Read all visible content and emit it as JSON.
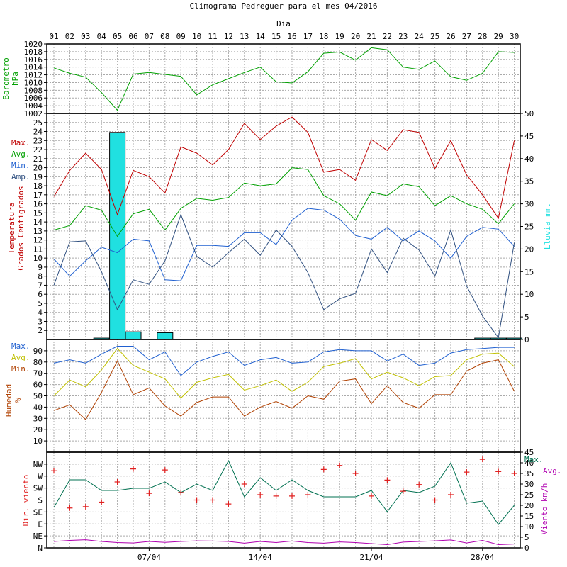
{
  "title": "Climograma Pedreguer para el mes 04/2016",
  "colors": {
    "pressure": "#00a000",
    "tmax": "#c00000",
    "tavg": "#00a000",
    "tmin": "#2060d0",
    "tamp": "#305080",
    "rain": "#20e0e0",
    "hmax": "#2060d0",
    "havg": "#c0c000",
    "hmin": "#b04000",
    "winddir": "#e02020",
    "windmax": "#007050",
    "windavg": "#b000b0",
    "grid": "#aaaaaa",
    "axis": "#000000"
  },
  "chart_data": [
    {
      "type": "line",
      "name": "pressure",
      "xlabel": "Dia",
      "categories": [
        "01",
        "02",
        "03",
        "04",
        "05",
        "06",
        "07",
        "08",
        "09",
        "10",
        "11",
        "12",
        "13",
        "14",
        "15",
        "16",
        "17",
        "18",
        "19",
        "20",
        "21",
        "22",
        "23",
        "24",
        "25",
        "26",
        "27",
        "28",
        "29",
        "30"
      ],
      "ylabel": "Barometro hPa",
      "ylabel_lines": [
        "Barometro",
        "hPa"
      ],
      "ylim": [
        1002,
        1020
      ],
      "yticks": [
        1002,
        1004,
        1006,
        1008,
        1010,
        1012,
        1014,
        1016,
        1018,
        1020
      ],
      "ytick_labels": [
        "1002",
        "1004",
        "1006",
        "1008",
        "1010",
        "1012",
        "1014",
        "1016",
        "1018",
        "1020"
      ],
      "series": [
        {
          "name": "",
          "values": [
            1013.8,
            1012.4,
            1011.4,
            1007.4,
            1002.8,
            1012.2,
            1012.6,
            1012.1,
            1011.6,
            1006.8,
            1009.4,
            1011.0,
            1012.6,
            1014.0,
            1010.2,
            1009.9,
            1012.8,
            1017.6,
            1017.9,
            1015.8,
            1019.0,
            1018.5,
            1014.0,
            1013.4,
            1015.6,
            1011.5,
            1010.6,
            1012.4,
            1018.0,
            1017.8
          ]
        }
      ]
    },
    {
      "type": "line",
      "name": "temperature",
      "ylabel": "Temperatura Grados Centigrados",
      "ylabel_lines": [
        "Temperatura",
        "Grados Centigrados"
      ],
      "ylim": [
        1,
        26
      ],
      "yticks": [
        2,
        3,
        4,
        5,
        6,
        7,
        8,
        9,
        10,
        11,
        12,
        13,
        14,
        15,
        16,
        17,
        18,
        19,
        20,
        21,
        22,
        23,
        24,
        25
      ],
      "ytick_labels": [
        "2",
        "3",
        "4",
        "5",
        "6",
        "7",
        "8",
        "9",
        "10",
        "11",
        "12",
        "13",
        "14",
        "15",
        "16",
        "17",
        "18",
        "19",
        "20",
        "21",
        "22",
        "23",
        "24",
        "25"
      ],
      "y2label": "Lluvia mm.",
      "y2lim": [
        0,
        50
      ],
      "y2ticks": [
        0,
        5,
        10,
        15,
        20,
        25,
        30,
        35,
        40,
        45,
        50
      ],
      "y2tick_labels": [
        "0",
        "5",
        "10",
        "15",
        "20",
        "25",
        "30",
        "35",
        "40",
        "45",
        "50"
      ],
      "legend": [
        "Max.",
        "Avg.",
        "Min.",
        "Amp."
      ],
      "series": [
        {
          "name": "Max.",
          "values": [
            16.8,
            19.7,
            21.6,
            19.8,
            14.8,
            19.7,
            19.0,
            17.2,
            22.3,
            21.6,
            20.3,
            22.0,
            24.9,
            23.1,
            24.6,
            25.6,
            23.9,
            19.5,
            19.8,
            18.6,
            23.1,
            21.9,
            24.2,
            23.9,
            19.9,
            23.0,
            19.2,
            17.0,
            14.4,
            23.0
          ]
        },
        {
          "name": "Avg.",
          "values": [
            13.1,
            13.6,
            15.8,
            15.3,
            12.4,
            14.9,
            15.4,
            13.1,
            15.5,
            16.6,
            16.4,
            16.7,
            18.3,
            18.0,
            18.2,
            20.0,
            19.8,
            16.9,
            16.0,
            14.2,
            17.3,
            16.9,
            18.2,
            17.9,
            15.8,
            16.9,
            16.0,
            15.4,
            13.8,
            16.0
          ]
        },
        {
          "name": "Min.",
          "values": [
            9.9,
            8.0,
            9.7,
            11.2,
            10.6,
            12.1,
            11.9,
            7.6,
            7.5,
            11.4,
            11.4,
            11.3,
            12.8,
            12.8,
            11.5,
            14.2,
            15.5,
            15.3,
            14.3,
            12.5,
            12.1,
            13.4,
            11.9,
            13.0,
            11.9,
            10.0,
            12.4,
            13.4,
            13.2,
            11.3
          ]
        },
        {
          "name": "Amp.",
          "values": [
            7.0,
            11.8,
            11.9,
            8.5,
            4.3,
            7.6,
            7.1,
            9.7,
            14.8,
            10.2,
            9.0,
            10.6,
            12.1,
            10.3,
            13.1,
            11.3,
            8.4,
            4.3,
            5.5,
            6.1,
            11.0,
            8.4,
            12.2,
            10.9,
            8.0,
            13.1,
            6.9,
            3.6,
            1.2,
            11.7
          ]
        }
      ],
      "rain": [
        0,
        0,
        0,
        0.3,
        45.8,
        1.7,
        0,
        1.5,
        0,
        0,
        0,
        0,
        0,
        0,
        0,
        0,
        0,
        0,
        0,
        0,
        0,
        0,
        0,
        0,
        0,
        0,
        0,
        0.3,
        0.3,
        0.3
      ]
    },
    {
      "type": "line",
      "name": "humidity",
      "ylabel": "Humedad %",
      "ylabel_lines": [
        "Humedad",
        "%"
      ],
      "ylim": [
        0,
        100
      ],
      "yticks": [
        10,
        20,
        30,
        40,
        50,
        60,
        70,
        80,
        90
      ],
      "ytick_labels": [
        "10",
        "20",
        "30",
        "40",
        "50",
        "60",
        "70",
        "80",
        "90"
      ],
      "legend": [
        "Max.",
        "Avg.",
        "Min."
      ],
      "series": [
        {
          "name": "Max.",
          "values": [
            79,
            82,
            79,
            87,
            94,
            94,
            82,
            89,
            68,
            80,
            85,
            89,
            77,
            82,
            84,
            79,
            80,
            89,
            91,
            90,
            90,
            81,
            87,
            77,
            79,
            88,
            91,
            92,
            93,
            93
          ]
        },
        {
          "name": "Avg.",
          "values": [
            50,
            64,
            58,
            73,
            92,
            77,
            71,
            65,
            48,
            62,
            66,
            69,
            55,
            59,
            64,
            54,
            62,
            76,
            79,
            83,
            65,
            71,
            66,
            59,
            67,
            68,
            82,
            87,
            88,
            76
          ]
        },
        {
          "name": "Min.",
          "values": [
            37,
            42,
            29,
            53,
            81,
            51,
            57,
            41,
            32,
            44,
            49,
            49,
            32,
            40,
            45,
            39,
            50,
            47,
            63,
            65,
            43,
            59,
            44,
            39,
            51,
            51,
            72,
            79,
            82,
            54
          ]
        }
      ]
    },
    {
      "type": "scatter",
      "name": "wind",
      "ylabel": "Dir. viento",
      "ylim": [
        0,
        360
      ],
      "ytick_values": [
        0,
        45,
        90,
        135,
        180,
        225,
        270,
        315
      ],
      "ytick_labels": [
        "N",
        "NE",
        "E",
        "SE",
        "S",
        "SW",
        "W",
        "NW"
      ],
      "y2label": "Viento km/h",
      "y2lim": [
        0,
        45
      ],
      "y2ticks": [
        0,
        5,
        10,
        15,
        20,
        25,
        30,
        35,
        40,
        45
      ],
      "y2tick_labels": [
        "0",
        "5",
        "10",
        "15",
        "20",
        "25",
        "30",
        "35",
        "40",
        "45"
      ],
      "legend": [
        "Max.",
        "Avg."
      ],
      "x_date_labels": [
        "07/04",
        "14/04",
        "21/04",
        "28/04"
      ],
      "direction": [
        290,
        150,
        155,
        172,
        248,
        297,
        205,
        293,
        208,
        180,
        180,
        165,
        240,
        200,
        195,
        195,
        200,
        295,
        310,
        280,
        195,
        255,
        213,
        238,
        180,
        200,
        285,
        333,
        287,
        280
      ],
      "series": [
        {
          "name": "Max.",
          "values": [
            19,
            32,
            32,
            27,
            27,
            28,
            28,
            31,
            26,
            30,
            27,
            41,
            24,
            33,
            27,
            32,
            27,
            24,
            24,
            24,
            27,
            17,
            27,
            26,
            29,
            40,
            21,
            22,
            11,
            20
          ]
        },
        {
          "name": "Avg.",
          "values": [
            3,
            3.5,
            3.8,
            3,
            2.5,
            2.3,
            3,
            2.6,
            3,
            3.3,
            3.2,
            3,
            2.2,
            3,
            2.5,
            3.2,
            2.5,
            2.2,
            2.8,
            2.5,
            2,
            1.5,
            2.7,
            3,
            3.3,
            3.7,
            2.3,
            3.5,
            1.5,
            1.8
          ]
        }
      ]
    }
  ]
}
